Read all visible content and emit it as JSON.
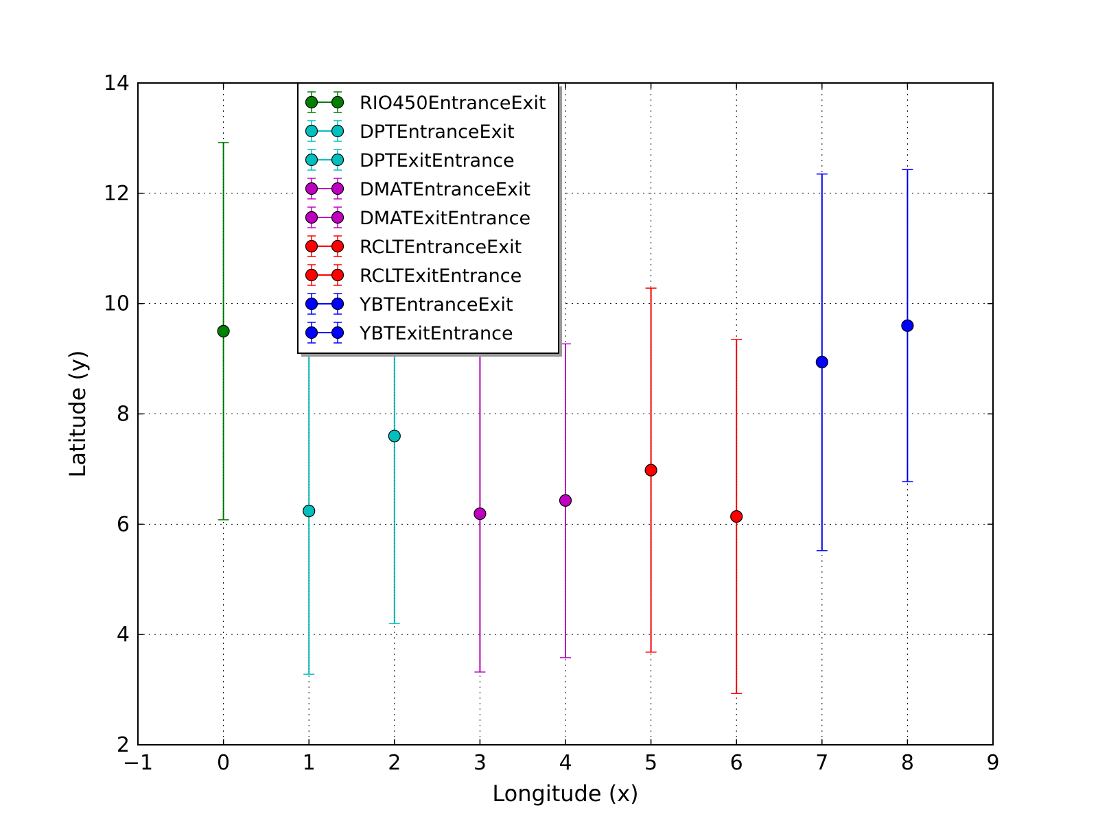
{
  "chart_data": {
    "type": "scatter",
    "subtype": "errorbar",
    "xlabel": "Longitude (x)",
    "ylabel": "Latitude (y)",
    "xlim": [
      -1,
      9
    ],
    "ylim": [
      2,
      14
    ],
    "x_ticks": [
      -1,
      0,
      1,
      2,
      3,
      4,
      5,
      6,
      7,
      8,
      9
    ],
    "y_ticks": [
      2,
      4,
      6,
      8,
      10,
      12,
      14
    ],
    "grid": true,
    "legend_position": "upper-left",
    "series": [
      {
        "name": "RIO450EntranceExit",
        "color": "#008000",
        "x": 0,
        "y": 9.5,
        "ylow": 6.08,
        "yhigh": 12.92
      },
      {
        "name": "DPTEntranceExit",
        "color": "#00bfbf",
        "x": 1,
        "y": 6.24,
        "ylow": 3.28,
        "yhigh": 9.2
      },
      {
        "name": "DPTExitEntrance",
        "color": "#00bfbf",
        "x": 2,
        "y": 7.6,
        "ylow": 4.2,
        "yhigh": 11.0
      },
      {
        "name": "DMATEntranceExit",
        "color": "#bf00bf",
        "x": 3,
        "y": 6.19,
        "ylow": 3.32,
        "yhigh": 9.07
      },
      {
        "name": "DMATExitEntrance",
        "color": "#bf00bf",
        "x": 4,
        "y": 6.43,
        "ylow": 3.58,
        "yhigh": 9.27
      },
      {
        "name": "RCLTEntranceExit",
        "color": "#ff0000",
        "x": 5,
        "y": 6.98,
        "ylow": 3.68,
        "yhigh": 10.28
      },
      {
        "name": "RCLTExitEntrance",
        "color": "#ff0000",
        "x": 6,
        "y": 6.14,
        "ylow": 2.93,
        "yhigh": 9.35
      },
      {
        "name": "YBTEntranceExit",
        "color": "#0000ff",
        "x": 7,
        "y": 8.94,
        "ylow": 5.52,
        "yhigh": 12.35
      },
      {
        "name": "YBTExitEntrance",
        "color": "#0000ff",
        "x": 8,
        "y": 9.6,
        "ylow": 6.77,
        "yhigh": 12.43
      }
    ]
  }
}
